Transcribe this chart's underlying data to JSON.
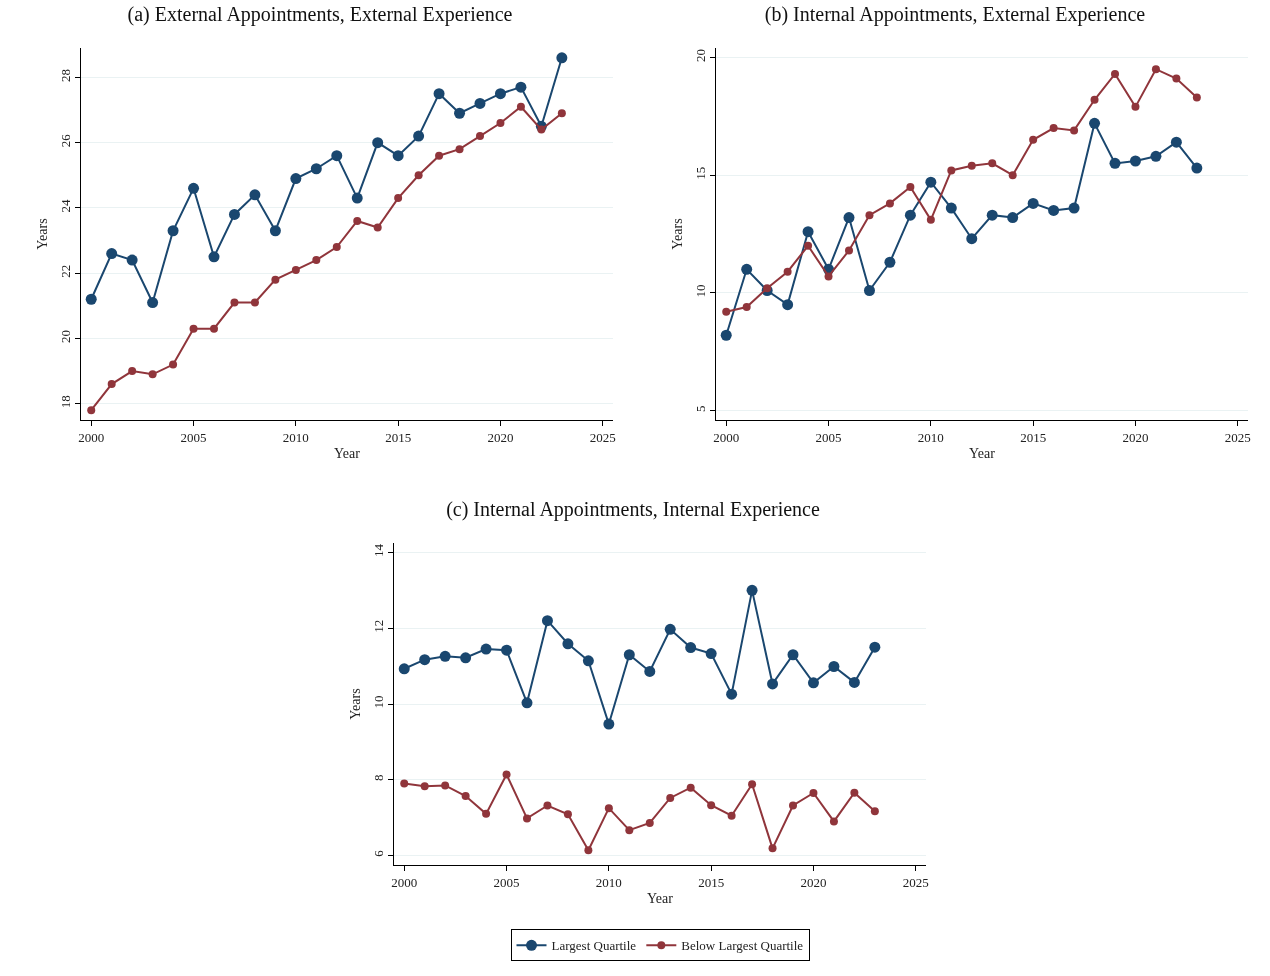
{
  "chart_data": [
    {
      "type": "line",
      "title": "(a) External Appointments, External Experience",
      "xlabel": "Year",
      "ylabel": "Years",
      "marker": "circle",
      "line_style": "solid",
      "grid": "y",
      "xlim": [
        1999.5,
        2025.5
      ],
      "xticks": [
        2000,
        2005,
        2010,
        2015,
        2020,
        2025
      ],
      "ylim": [
        17.5,
        28.9
      ],
      "yticks": [
        18,
        20,
        22,
        24,
        26,
        28
      ],
      "x": [
        2000,
        2001,
        2002,
        2003,
        2004,
        2005,
        2006,
        2007,
        2008,
        2009,
        2010,
        2011,
        2012,
        2013,
        2014,
        2015,
        2016,
        2017,
        2018,
        2019,
        2020,
        2021,
        2022,
        2023
      ],
      "series": [
        {
          "color": "#1a476f",
          "values": [
            21.2,
            22.6,
            22.4,
            21.1,
            23.3,
            24.6,
            22.5,
            23.8,
            24.4,
            23.3,
            24.9,
            25.2,
            25.6,
            24.3,
            26.0,
            25.6,
            26.2,
            27.5,
            26.9,
            27.2,
            27.5,
            27.7,
            26.5,
            28.6
          ]
        },
        {
          "color": "#90353b",
          "values": [
            17.8,
            18.6,
            19.0,
            18.9,
            19.2,
            20.3,
            20.3,
            21.1,
            21.1,
            21.8,
            22.1,
            22.4,
            22.8,
            23.6,
            23.4,
            24.3,
            25.0,
            25.6,
            25.8,
            26.2,
            26.6,
            27.1,
            26.4,
            26.9
          ]
        }
      ]
    },
    {
      "type": "line",
      "title": "(b) Internal Appointments, External Experience",
      "xlabel": "Year",
      "ylabel": "Years",
      "marker": "circle",
      "line_style": "solid",
      "grid": "y",
      "xlim": [
        1999.5,
        2025.5
      ],
      "xticks": [
        2000,
        2005,
        2010,
        2015,
        2020,
        2025
      ],
      "ylim": [
        4.6,
        20.4
      ],
      "yticks": [
        5,
        10,
        15,
        20
      ],
      "x": [
        2000,
        2001,
        2002,
        2003,
        2004,
        2005,
        2006,
        2007,
        2008,
        2009,
        2010,
        2011,
        2012,
        2013,
        2014,
        2015,
        2016,
        2017,
        2018,
        2019,
        2020,
        2021,
        2022,
        2023
      ],
      "series": [
        {
          "color": "#1a476f",
          "values": [
            8.2,
            11.0,
            10.1,
            9.5,
            12.6,
            11.0,
            13.2,
            10.1,
            11.3,
            13.3,
            14.7,
            13.6,
            12.3,
            13.3,
            13.2,
            13.8,
            13.5,
            13.6,
            17.2,
            15.5,
            15.6,
            15.8,
            16.4,
            15.3
          ]
        },
        {
          "color": "#90353b",
          "values": [
            9.2,
            9.4,
            10.2,
            10.9,
            12.0,
            10.7,
            11.8,
            13.3,
            13.8,
            14.5,
            13.1,
            15.2,
            15.4,
            15.5,
            15.0,
            16.5,
            17.0,
            16.9,
            18.2,
            19.3,
            17.9,
            19.5,
            19.1,
            18.3
          ]
        }
      ]
    },
    {
      "type": "line",
      "title": "(c) Internal Appointments, Internal Experience",
      "xlabel": "Year",
      "ylabel": "Years",
      "marker": "circle",
      "line_style": "solid",
      "grid": "y",
      "legend": "bottom",
      "xlim": [
        1999.5,
        2025.5
      ],
      "xticks": [
        2000,
        2005,
        2010,
        2015,
        2020,
        2025
      ],
      "ylim": [
        5.75,
        14.25
      ],
      "yticks": [
        6,
        8,
        10,
        12,
        14
      ],
      "x": [
        2000,
        2001,
        2002,
        2003,
        2004,
        2005,
        2006,
        2007,
        2008,
        2009,
        2010,
        2011,
        2012,
        2013,
        2014,
        2015,
        2016,
        2017,
        2018,
        2019,
        2020,
        2021,
        2022,
        2023
      ],
      "series": [
        {
          "name": "Largest Quartile",
          "color": "#1a476f",
          "values": [
            10.93,
            11.17,
            11.26,
            11.22,
            11.45,
            11.42,
            10.03,
            12.2,
            11.59,
            11.14,
            9.47,
            11.3,
            10.86,
            11.97,
            11.49,
            11.33,
            10.26,
            13.0,
            10.53,
            11.3,
            10.56,
            10.99,
            10.57,
            11.5
          ]
        },
        {
          "name": "Below Largest Quartile",
          "color": "#90353b",
          "values": [
            7.9,
            7.83,
            7.85,
            7.57,
            7.1,
            8.14,
            6.98,
            7.32,
            7.09,
            6.14,
            7.25,
            6.67,
            6.86,
            7.52,
            7.79,
            7.33,
            7.05,
            7.88,
            6.19,
            7.32,
            7.65,
            6.9,
            7.66,
            7.17
          ]
        }
      ]
    }
  ]
}
